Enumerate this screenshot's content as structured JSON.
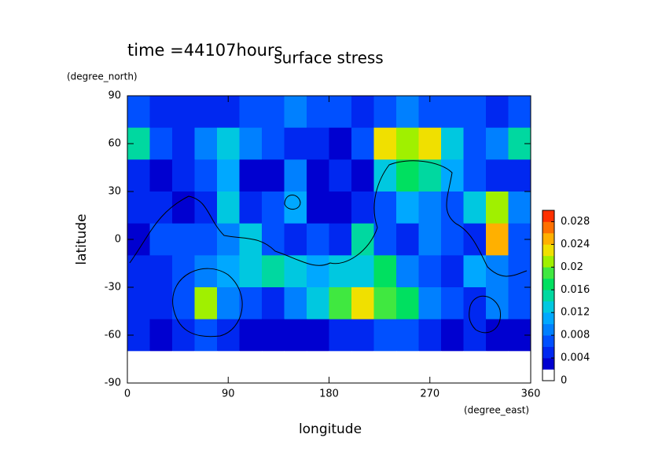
{
  "chart_data": {
    "type": "heatmap",
    "title": "surface stress",
    "subtitle": "time =44107hours",
    "xlabel": "longitude",
    "xunits": "(degree_east)",
    "ylabel": "latitude",
    "yunits": "(degree_north)",
    "x": [
      10,
      30,
      50,
      70,
      90,
      110,
      130,
      150,
      170,
      190,
      210,
      230,
      250,
      270,
      290,
      310,
      330,
      350
    ],
    "y": [
      80,
      60,
      40,
      20,
      0,
      -20,
      -40,
      -60,
      -80
    ],
    "z": [
      [
        0.006,
        0.005,
        0.005,
        0.005,
        0.005,
        0.006,
        0.007,
        0.008,
        0.006,
        0.006,
        0.005,
        0.006,
        0.008,
        0.007,
        0.006,
        0.006,
        0.005,
        0.006
      ],
      [
        0.014,
        0.006,
        0.005,
        0.008,
        0.012,
        0.008,
        0.006,
        0.005,
        0.004,
        0.003,
        0.006,
        0.022,
        0.02,
        0.022,
        0.012,
        0.006,
        0.008,
        0.014
      ],
      [
        0.004,
        0.002,
        0.004,
        0.006,
        0.01,
        0.003,
        0.002,
        0.008,
        0.002,
        0.004,
        0.003,
        0.012,
        0.016,
        0.014,
        0.01,
        0.006,
        0.005,
        0.004
      ],
      [
        0.004,
        0.005,
        0.003,
        0.005,
        0.012,
        0.004,
        0.006,
        0.01,
        0.003,
        0.002,
        0.004,
        0.006,
        0.01,
        0.008,
        0.006,
        0.012,
        0.02,
        0.008
      ],
      [
        0.002,
        0.006,
        0.006,
        0.007,
        0.008,
        0.012,
        0.006,
        0.004,
        0.006,
        0.004,
        0.014,
        0.006,
        0.004,
        0.008,
        0.006,
        0.004,
        0.024,
        0.006
      ],
      [
        0.004,
        0.004,
        0.007,
        0.008,
        0.01,
        0.012,
        0.014,
        0.012,
        0.01,
        0.012,
        0.012,
        0.016,
        0.008,
        0.006,
        0.004,
        0.01,
        0.008,
        0.006
      ],
      [
        0.005,
        0.004,
        0.006,
        0.02,
        0.008,
        0.006,
        0.005,
        0.008,
        0.012,
        0.018,
        0.022,
        0.018,
        0.016,
        0.008,
        0.006,
        0.004,
        0.008,
        0.006
      ],
      [
        0.004,
        0.003,
        0.005,
        0.006,
        0.004,
        0.002,
        0.002,
        0.003,
        0.002,
        0.004,
        0.005,
        0.007,
        0.006,
        0.004,
        0.003,
        0.004,
        0.003,
        0.002
      ],
      [
        0,
        0,
        0,
        0,
        0,
        0,
        0,
        0,
        0,
        0,
        0,
        0,
        0,
        0,
        0,
        0,
        0,
        0
      ]
    ],
    "xlim": [
      0,
      360
    ],
    "xticks": [
      0,
      90,
      180,
      270,
      360
    ],
    "ylim": [
      -90,
      90
    ],
    "yticks": [
      -90,
      -60,
      -30,
      0,
      30,
      60,
      90
    ],
    "colorbar": {
      "lim": [
        0,
        0.03
      ],
      "ticks": [
        0,
        0.004,
        0.008,
        0.012,
        0.016,
        0.02,
        0.024,
        0.028
      ],
      "levels": [
        0,
        0.002,
        0.004,
        0.006,
        0.008,
        0.01,
        0.012,
        0.014,
        0.016,
        0.018,
        0.02,
        0.022,
        0.024,
        0.026,
        0.028,
        0.03
      ],
      "colors": [
        "#ffffff",
        "#0000d0",
        "#0028f0",
        "#0050ff",
        "#0080ff",
        "#00a8ff",
        "#00c8e0",
        "#00d8a0",
        "#00e060",
        "#40e840",
        "#a0f000",
        "#f0e000",
        "#ffb000",
        "#ff7000",
        "#ff3000"
      ]
    }
  }
}
